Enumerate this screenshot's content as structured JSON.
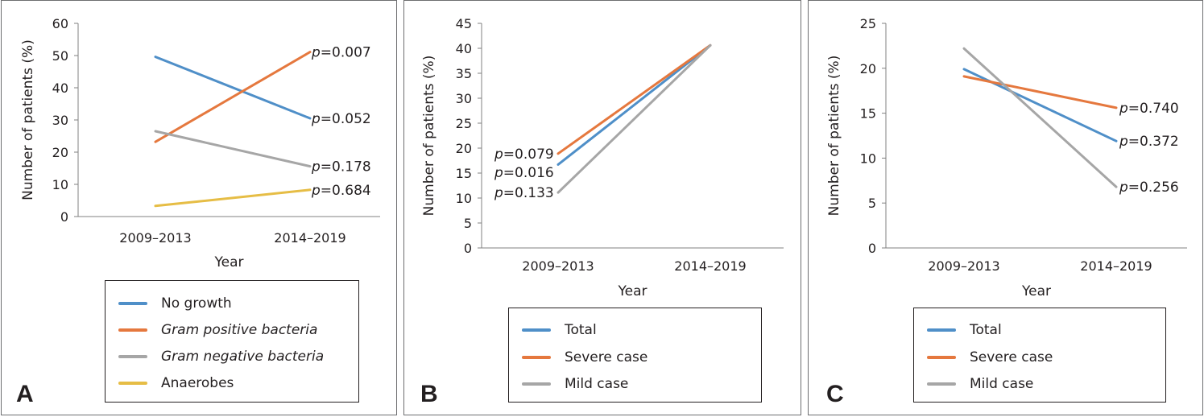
{
  "panels": [
    {
      "letter": "A",
      "legend": [
        "No growth",
        "Gram positive bacteria",
        "Gram negative bacteria",
        "Anaerobes"
      ]
    },
    {
      "letter": "B",
      "legend": [
        "Total",
        "Severe case",
        "Mild case"
      ]
    },
    {
      "letter": "C",
      "legend": [
        "Total",
        "Severe case",
        "Mild case"
      ]
    }
  ],
  "chart_data": [
    {
      "type": "line",
      "panel": "A",
      "categories": [
        "2009–2013",
        "2014–2019"
      ],
      "xlabel": "Year",
      "ylabel": "Number of patients (%)",
      "ylim": [
        0,
        60
      ],
      "yticks": [
        0,
        10,
        20,
        30,
        40,
        50,
        60
      ],
      "grid": false,
      "legend_position": "bottom",
      "series": [
        {
          "name": "No growth",
          "values": [
            49.6,
            30.5
          ],
          "color": "#4f8fc8",
          "italic": false,
          "annotation": "0.052"
        },
        {
          "name": "Gram positive bacteria",
          "values": [
            23.2,
            51.1
          ],
          "color": "#e5783e",
          "italic": true,
          "annotation": "0.007"
        },
        {
          "name": "Gram negative bacteria",
          "values": [
            26.5,
            15.6
          ],
          "color": "#a6a6a6",
          "italic": true,
          "annotation": "0.178"
        },
        {
          "name": "Anaerobes",
          "values": [
            3.3,
            8.3
          ],
          "color": "#e6bd45",
          "italic": false,
          "annotation": "0.684"
        }
      ]
    },
    {
      "type": "line",
      "panel": "B",
      "categories": [
        "2009–2013",
        "2014–2019"
      ],
      "xlabel": "Year",
      "ylabel": "Number of patients (%)",
      "ylim": [
        0,
        45
      ],
      "yticks": [
        0,
        5,
        10,
        15,
        20,
        25,
        30,
        35,
        40,
        45
      ],
      "grid": false,
      "legend_position": "bottom",
      "series": [
        {
          "name": "Total",
          "values": [
            16.7,
            40.6
          ],
          "color": "#4f8fc8",
          "italic": false,
          "annotation": "0.016"
        },
        {
          "name": "Severe case",
          "values": [
            18.9,
            40.6
          ],
          "color": "#e5783e",
          "italic": false,
          "annotation": "0.079"
        },
        {
          "name": "Mild case",
          "values": [
            11.1,
            40.6
          ],
          "color": "#a6a6a6",
          "italic": false,
          "annotation": "0.133"
        }
      ]
    },
    {
      "type": "line",
      "panel": "C",
      "categories": [
        "2009–2013",
        "2014–2019"
      ],
      "xlabel": "Year",
      "ylabel": "Number of patients (%)",
      "ylim": [
        0,
        25
      ],
      "yticks": [
        0,
        5,
        10,
        15,
        20,
        25
      ],
      "grid": false,
      "legend_position": "bottom",
      "series": [
        {
          "name": "Total",
          "values": [
            19.9,
            11.9
          ],
          "color": "#4f8fc8",
          "italic": false,
          "annotation": "0.372"
        },
        {
          "name": "Severe case",
          "values": [
            19.1,
            15.6
          ],
          "color": "#e5783e",
          "italic": false,
          "annotation": "0.740"
        },
        {
          "name": "Mild case",
          "values": [
            22.2,
            6.8
          ],
          "color": "#a6a6a6",
          "italic": false,
          "annotation": "0.256"
        }
      ]
    }
  ]
}
